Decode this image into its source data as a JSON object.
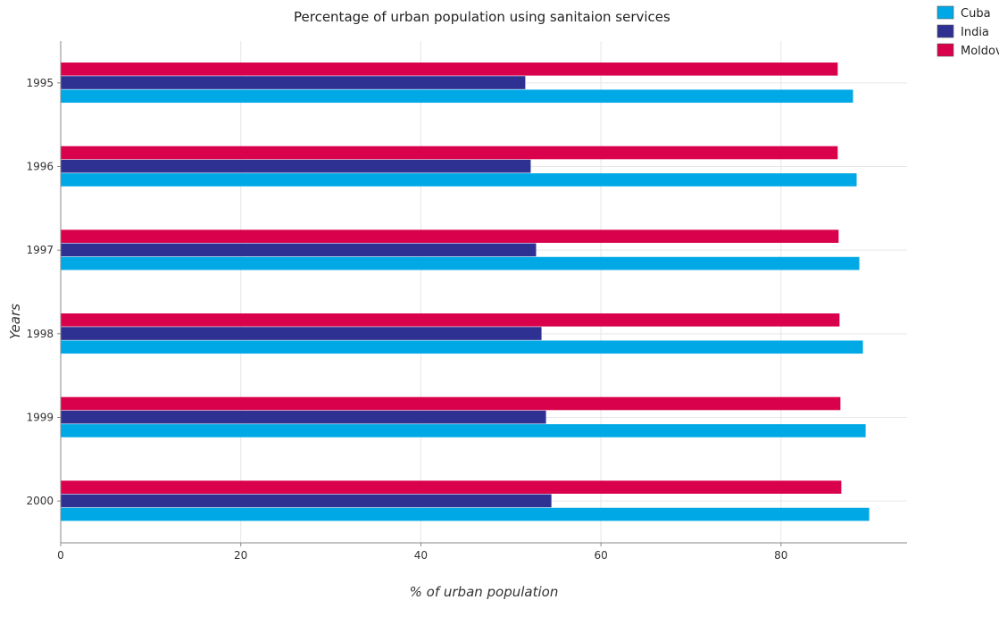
{
  "chart_data": {
    "type": "bar",
    "orientation": "horizontal",
    "title": "Percentage of urban population using sanitaion services",
    "xlabel": "% of urban population",
    "ylabel": "Years",
    "categories": [
      "1995",
      "1996",
      "1997",
      "1998",
      "1999",
      "2000"
    ],
    "xlim": [
      0,
      94
    ],
    "xticks": [
      0,
      20,
      40,
      60,
      80
    ],
    "grid": true,
    "legend_position": "top-right",
    "series": [
      {
        "name": "Cuba",
        "color": "#00a9e6",
        "values": [
          88.0,
          88.4,
          88.7,
          89.1,
          89.4,
          89.8
        ]
      },
      {
        "name": "India",
        "color": "#2e3192",
        "values": [
          51.6,
          52.2,
          52.8,
          53.4,
          53.9,
          54.5
        ]
      },
      {
        "name": "Moldova",
        "color": "#d9004c",
        "values": [
          86.3,
          86.3,
          86.4,
          86.5,
          86.6,
          86.7
        ]
      }
    ]
  }
}
